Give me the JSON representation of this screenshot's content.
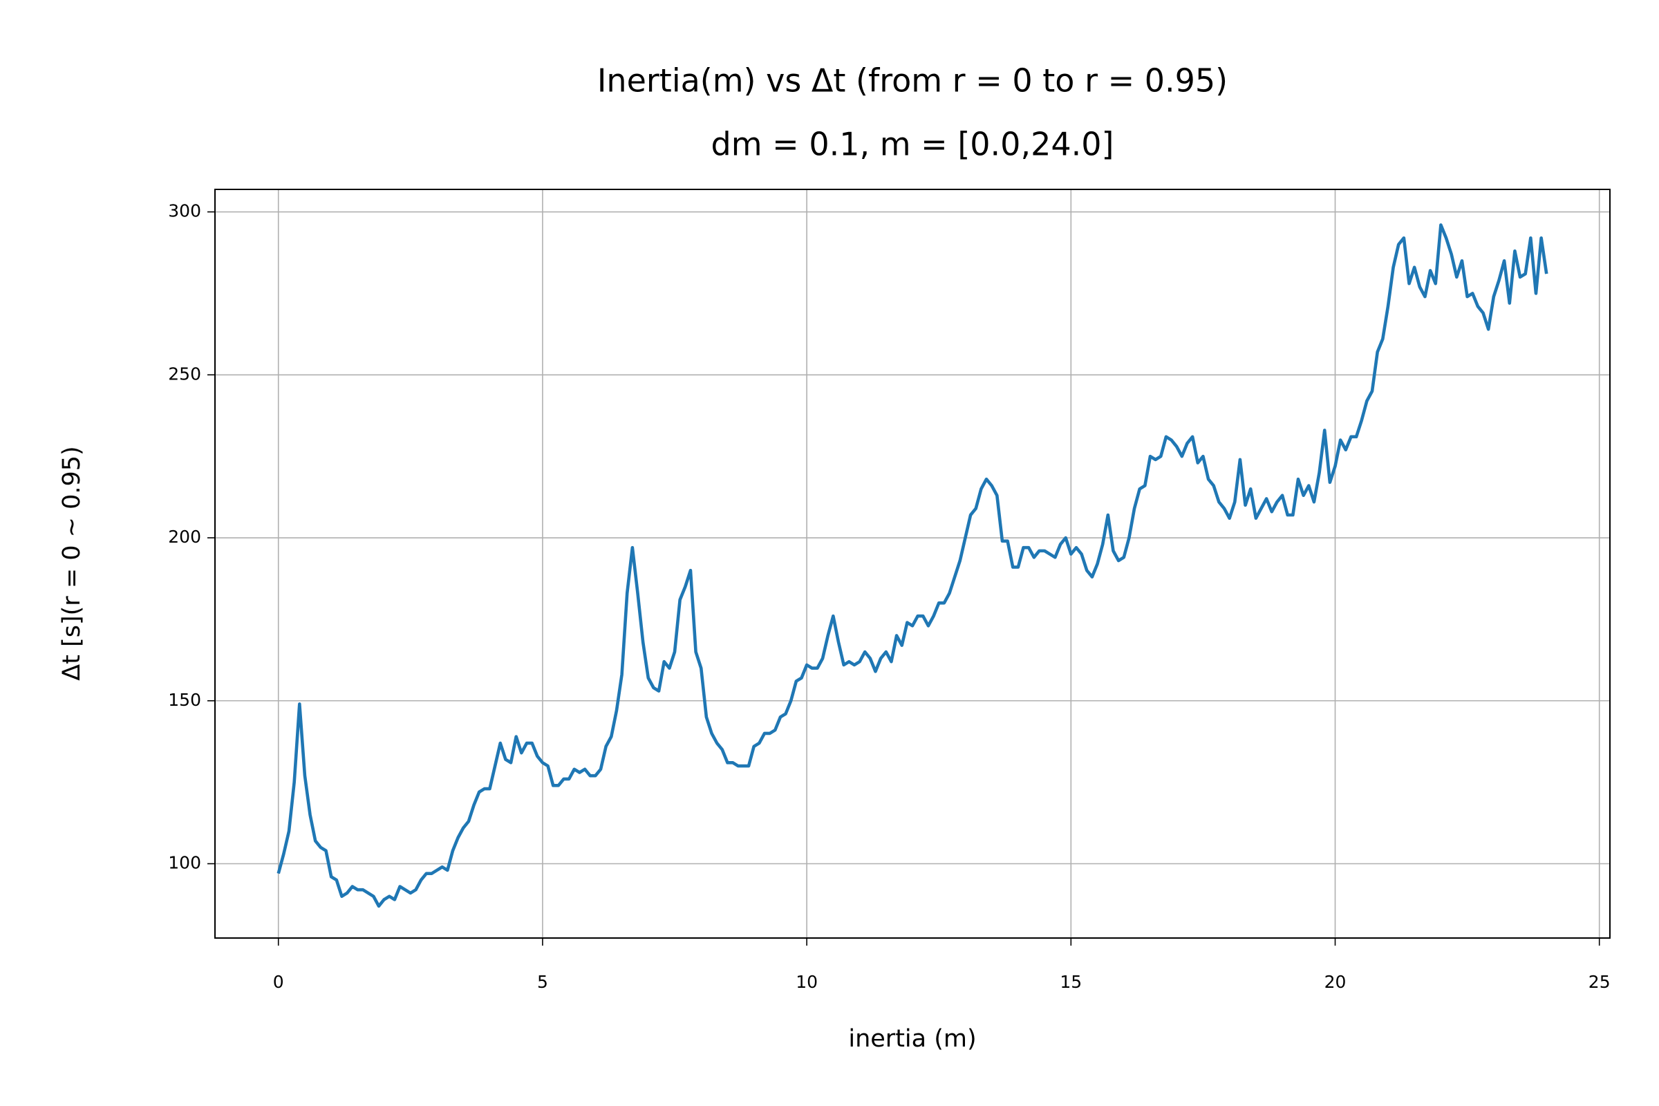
{
  "chart_data": {
    "type": "line",
    "title": [
      "Inertia(m) vs Δt (from r = 0 to r = 0.95)",
      "dm = 0.1, m = [0.0,24.0]"
    ],
    "xlabel": "inertia (m)",
    "ylabel": "Δt [s](r = 0 ~ 0.95)",
    "color": "#1f77b4",
    "grid": true,
    "xlim": [
      -1.2,
      25.2
    ],
    "ylim": [
      77.2,
      306.9
    ],
    "xticks": [
      0,
      5,
      10,
      15,
      20,
      25
    ],
    "yticks": [
      100,
      150,
      200,
      250,
      300
    ],
    "x": [
      0.0,
      0.1,
      0.2,
      0.3,
      0.4,
      0.5,
      0.6,
      0.7,
      0.8,
      0.9,
      1.0,
      1.1,
      1.2,
      1.3,
      1.4,
      1.5,
      1.6,
      1.7,
      1.8,
      1.9,
      2.0,
      2.1,
      2.2,
      2.3,
      2.4,
      2.5,
      2.6,
      2.7,
      2.8,
      2.9,
      3.0,
      3.1,
      3.2,
      3.3,
      3.4,
      3.5,
      3.6,
      3.7,
      3.8,
      3.9,
      4.0,
      4.1,
      4.2,
      4.3,
      4.4,
      4.5,
      4.6,
      4.7,
      4.8,
      4.9,
      5.0,
      5.1,
      5.2,
      5.3,
      5.4,
      5.5,
      5.6,
      5.7,
      5.8,
      5.9,
      6.0,
      6.1,
      6.2,
      6.3,
      6.4,
      6.5,
      6.6,
      6.7,
      6.8,
      6.9,
      7.0,
      7.1,
      7.2,
      7.3,
      7.4,
      7.5,
      7.6,
      7.7,
      7.8,
      7.9,
      8.0,
      8.1,
      8.2,
      8.3,
      8.4,
      8.5,
      8.6,
      8.7,
      8.8,
      8.9,
      9.0,
      9.1,
      9.2,
      9.3,
      9.4,
      9.5,
      9.6,
      9.7,
      9.8,
      9.9,
      10.0,
      10.1,
      10.2,
      10.3,
      10.4,
      10.5,
      10.6,
      10.7,
      10.8,
      10.9,
      11.0,
      11.1,
      11.2,
      11.3,
      11.4,
      11.5,
      11.6,
      11.7,
      11.8,
      11.9,
      12.0,
      12.1,
      12.2,
      12.3,
      12.4,
      12.5,
      12.6,
      12.7,
      12.8,
      12.9,
      13.0,
      13.1,
      13.2,
      13.3,
      13.4,
      13.5,
      13.6,
      13.7,
      13.8,
      13.9,
      14.0,
      14.1,
      14.2,
      14.3,
      14.4,
      14.5,
      14.6,
      14.7,
      14.8,
      14.9,
      15.0,
      15.1,
      15.2,
      15.3,
      15.4,
      15.5,
      15.6,
      15.7,
      15.8,
      15.9,
      16.0,
      16.1,
      16.2,
      16.3,
      16.4,
      16.5,
      16.6,
      16.7,
      16.8,
      16.9,
      17.0,
      17.1,
      17.2,
      17.3,
      17.4,
      17.5,
      17.6,
      17.7,
      17.8,
      17.9,
      18.0,
      18.1,
      18.2,
      18.3,
      18.4,
      18.5,
      18.6,
      18.7,
      18.8,
      18.9,
      19.0,
      19.1,
      19.2,
      19.3,
      19.4,
      19.5,
      19.6,
      19.7,
      19.8,
      19.9,
      20.0,
      20.1,
      20.2,
      20.3,
      20.4,
      20.5,
      20.6,
      20.7,
      20.8,
      20.9,
      21.0,
      21.1,
      21.2,
      21.3,
      21.4,
      21.5,
      21.6,
      21.7,
      21.8,
      21.9,
      22.0,
      22.1,
      22.2,
      22.3,
      22.4,
      22.5,
      22.6,
      22.7,
      22.8,
      22.9,
      23.0,
      23.1,
      23.2,
      23.3,
      23.4,
      23.5,
      23.6,
      23.7,
      23.8,
      23.9,
      24.0
    ],
    "values": [
      97,
      103,
      110,
      125,
      149,
      127,
      115,
      107,
      105,
      104,
      96,
      95,
      90,
      91,
      93,
      92,
      92,
      91,
      90,
      87,
      89,
      90,
      89,
      93,
      92,
      91,
      92,
      95,
      97,
      97,
      98,
      99,
      98,
      104,
      108,
      111,
      113,
      118,
      122,
      123,
      123,
      130,
      137,
      132,
      131,
      139,
      134,
      137,
      137,
      133,
      131,
      130,
      124,
      124,
      126,
      126,
      129,
      128,
      129,
      127,
      127,
      129,
      136,
      139,
      147,
      158,
      183,
      197,
      183,
      168,
      157,
      154,
      153,
      162,
      160,
      165,
      181,
      185,
      190,
      165,
      160,
      145,
      140,
      137,
      135,
      131,
      131,
      130,
      130,
      130,
      136,
      137,
      140,
      140,
      141,
      145,
      146,
      150,
      156,
      157,
      161,
      160,
      160,
      163,
      170,
      176,
      168,
      161,
      162,
      161,
      162,
      165,
      163,
      159,
      163,
      165,
      162,
      170,
      167,
      174,
      173,
      176,
      176,
      173,
      176,
      180,
      180,
      183,
      188,
      193,
      200,
      207,
      209,
      215,
      218,
      216,
      213,
      199,
      199,
      191,
      191,
      197,
      197,
      194,
      196,
      196,
      195,
      194,
      198,
      200,
      195,
      197,
      195,
      190,
      188,
      192,
      198,
      207,
      196,
      193,
      194,
      200,
      209,
      215,
      216,
      225,
      224,
      225,
      231,
      230,
      228,
      225,
      229,
      231,
      223,
      225,
      218,
      216,
      211,
      209,
      206,
      211,
      224,
      210,
      215,
      206,
      209,
      212,
      208,
      211,
      213,
      207,
      207,
      218,
      213,
      216,
      211,
      220,
      233,
      217,
      222,
      230,
      227,
      231,
      231,
      236,
      242,
      245,
      257,
      261,
      271,
      283,
      290,
      292,
      278,
      283,
      277,
      274,
      282,
      278,
      296,
      292,
      287,
      280,
      285,
      274,
      275,
      271,
      269,
      264,
      274,
      279,
      285,
      272,
      288,
      280,
      281,
      292,
      275,
      292,
      281
    ]
  }
}
